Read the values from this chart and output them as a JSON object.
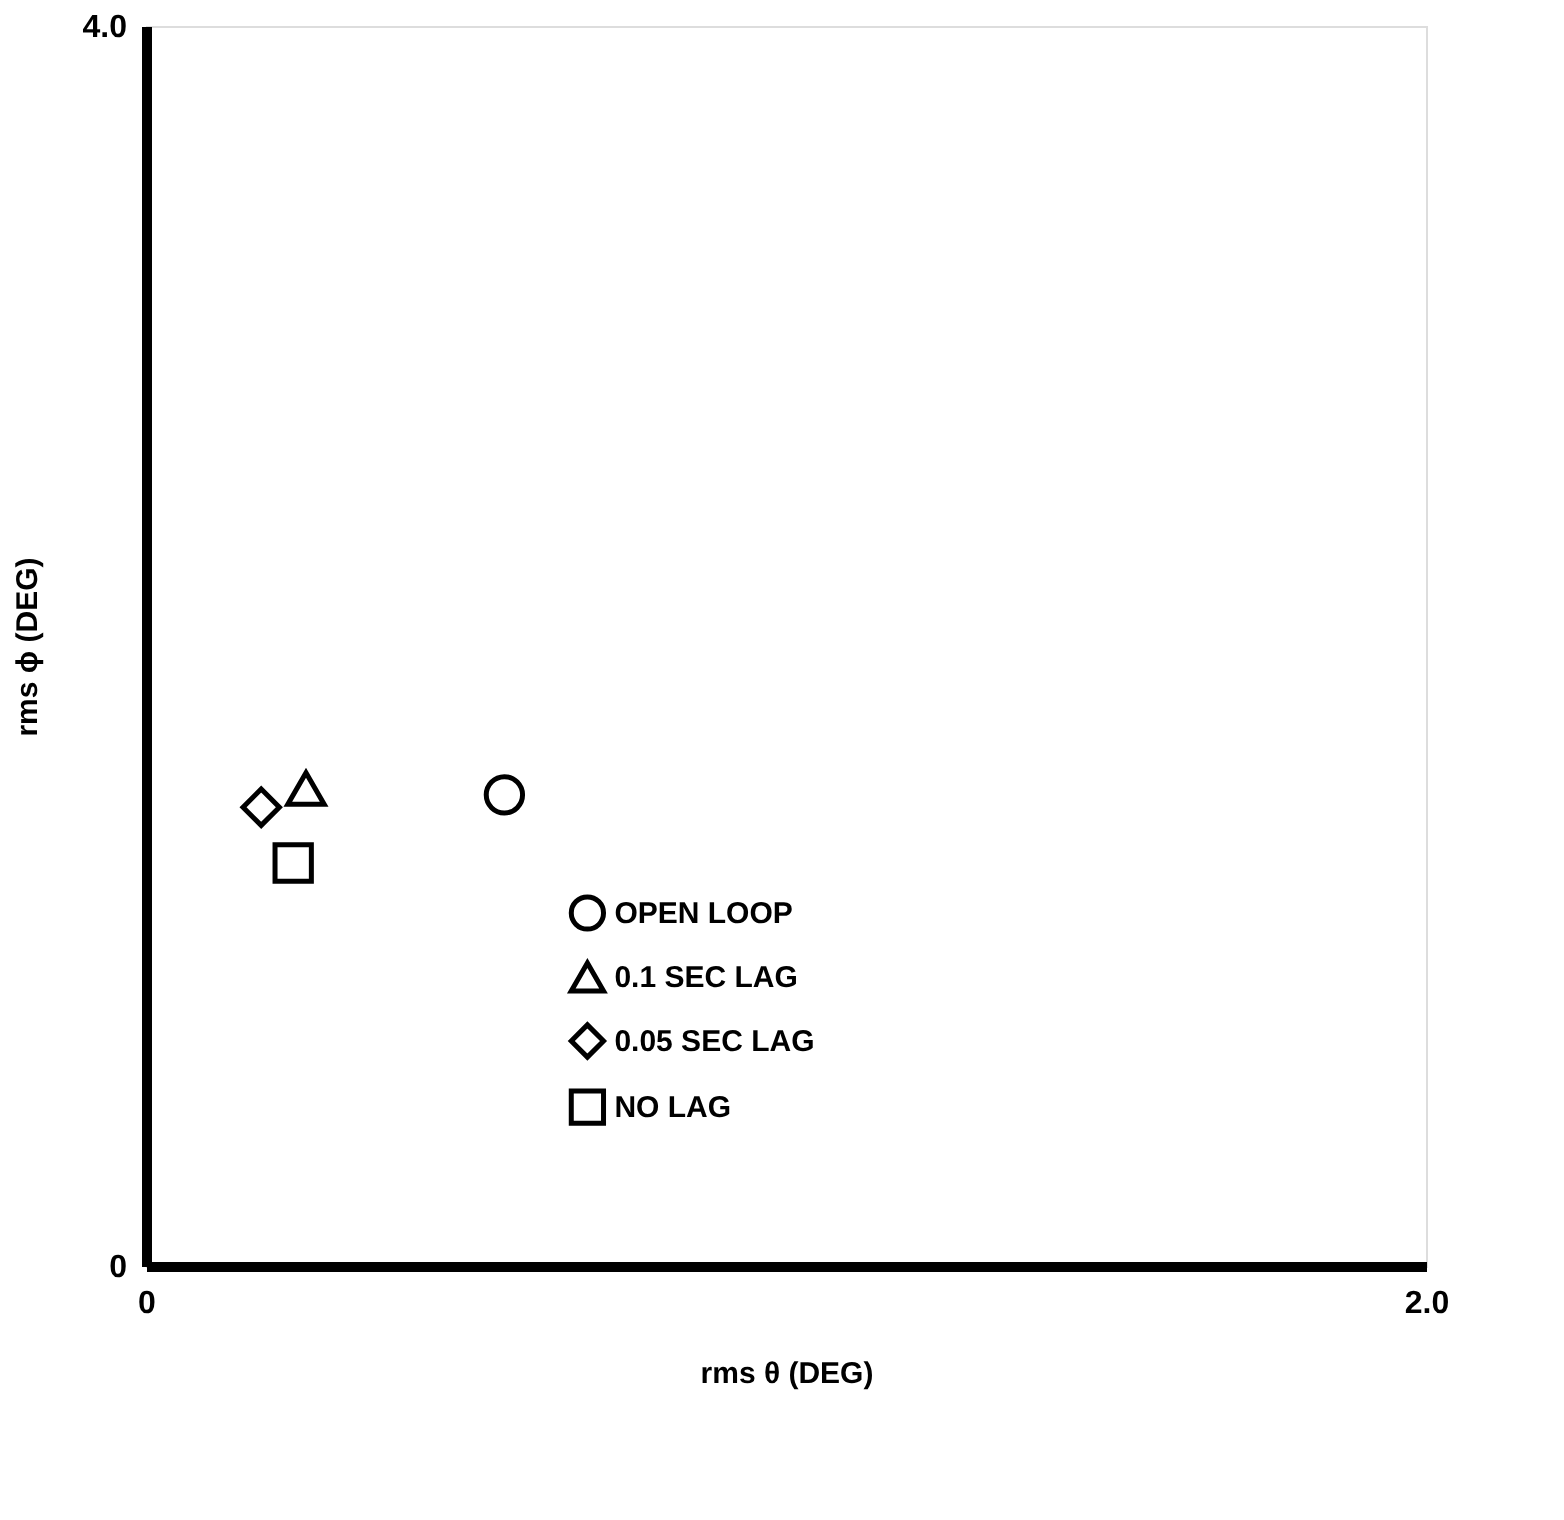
{
  "chart_data": {
    "type": "scatter",
    "xlabel": "rms θ (DEG)",
    "ylabel": "rms ϕ (DEG)",
    "xlim": [
      0,
      2.0
    ],
    "ylim": [
      0,
      4.0
    ],
    "xticks": [
      0,
      {
        "value": 2.0,
        "label": "2.0"
      }
    ],
    "yticks": [
      0,
      {
        "value": 4.0,
        "label": "4.0"
      }
    ],
    "legend": "bottom",
    "series": [
      {
        "name": "OPEN LOOP",
        "color": "#000000",
        "marker": "circle",
        "x": [
          0.56
        ],
        "values": [
          1.52
        ]
      },
      {
        "name": "0.1 SEC LAG",
        "color": "#000000",
        "marker": "triangle",
        "x": [
          0.25
        ],
        "values": [
          1.54
        ]
      },
      {
        "name": "0.05 SEC LAG",
        "color": "#000000",
        "marker": "diamond",
        "x": [
          0.18
        ],
        "values": [
          1.48
        ]
      },
      {
        "name": "NO LAG",
        "color": "#000000",
        "marker": "square",
        "x": [
          0.23
        ],
        "values": [
          1.3
        ]
      }
    ]
  }
}
